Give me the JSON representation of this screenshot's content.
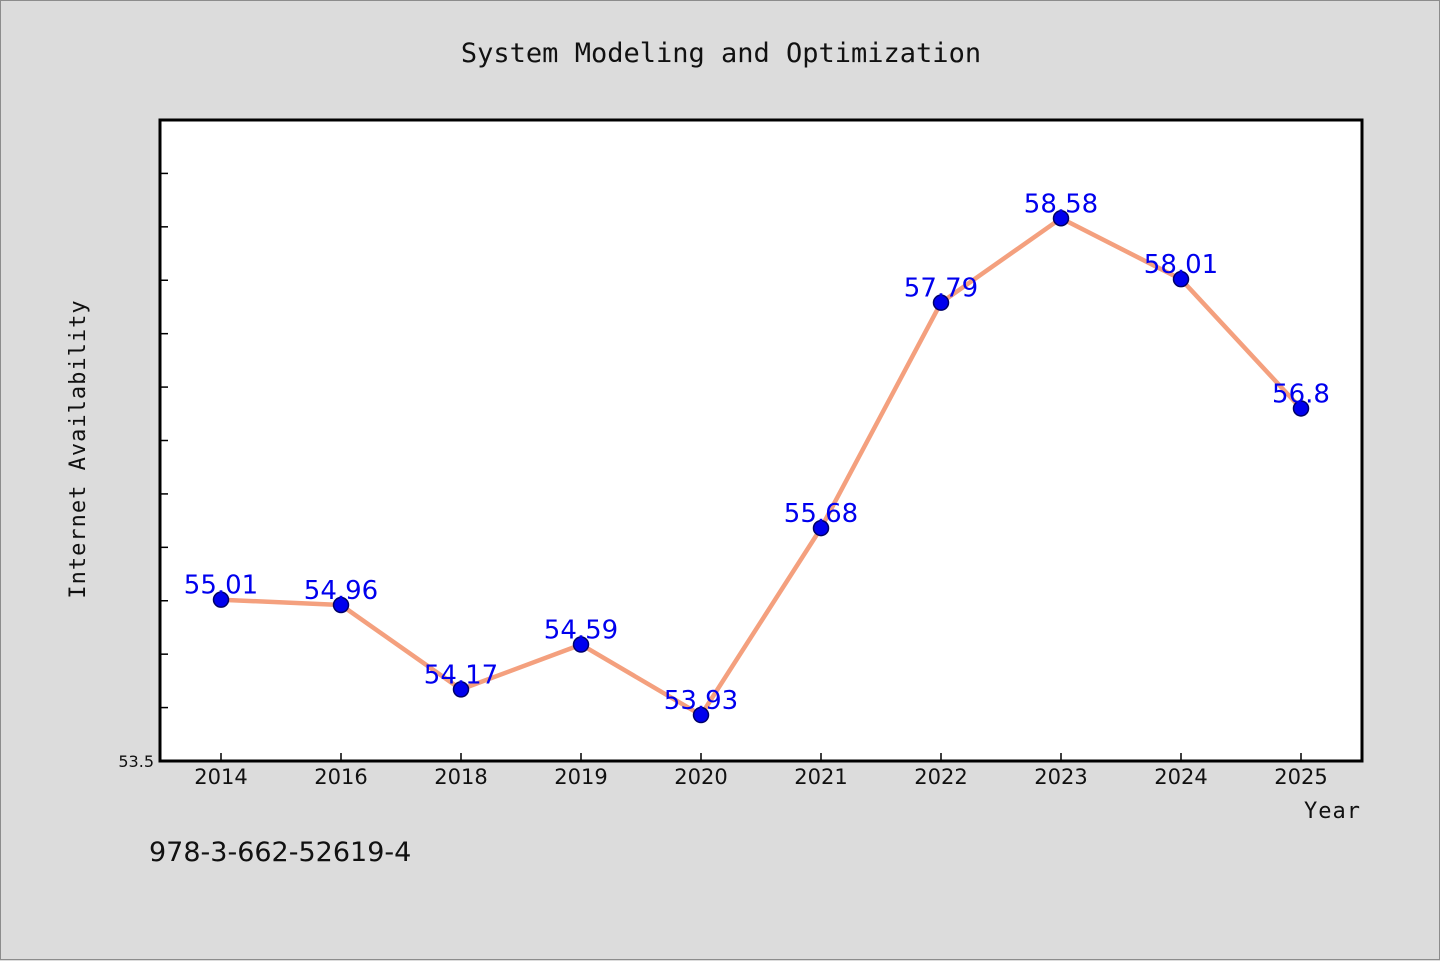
{
  "chart_data": {
    "type": "line",
    "title": "System Modeling and Optimization",
    "xlabel": "Year",
    "ylabel": "Internet Availability",
    "categories": [
      "2014",
      "2016",
      "2018",
      "2019",
      "2020",
      "2021",
      "2022",
      "2023",
      "2024",
      "2025"
    ],
    "series": [
      {
        "values": [
          55.01,
          54.96,
          54.17,
          54.59,
          53.93,
          55.68,
          57.79,
          58.58,
          58.01,
          56.8
        ],
        "labels": [
          "55.01",
          "54.96",
          "54.17",
          "54.59",
          "53.93",
          "55.68",
          "57.79",
          "58.58",
          "58.01",
          "56.8"
        ]
      }
    ],
    "ylim": [
      53.5,
      59.5
    ],
    "y_tick_labels": [
      "53.5"
    ],
    "grid": false,
    "legend": "none",
    "colors": {
      "line": "#f4a07e",
      "marker": "#0000ee",
      "marker_edge": "#000066",
      "data_label": "#0000ee",
      "plot_background": "#ffffff",
      "figure_background": "#dcdcdc"
    }
  },
  "footer": {
    "code": "978-3-662-52619-4"
  }
}
